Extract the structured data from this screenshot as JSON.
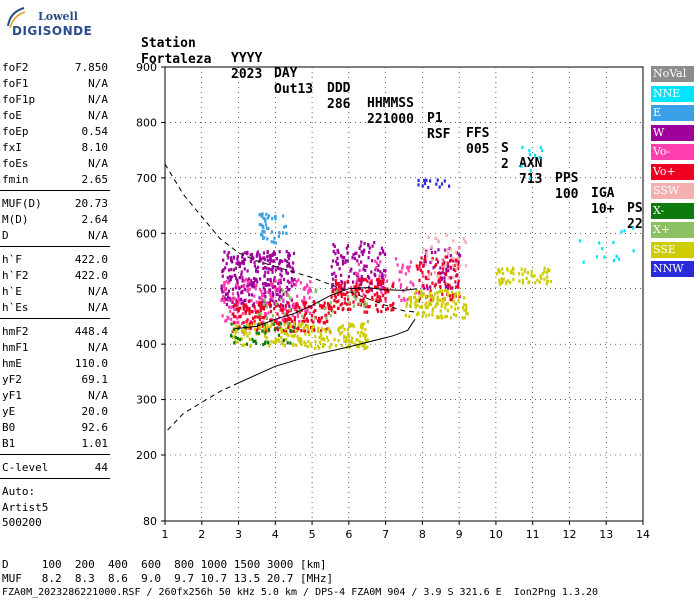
{
  "logo": {
    "top": "Lowell",
    "bottom": "DIGISONDE"
  },
  "header": {
    "labels": [
      "Station",
      "YYYY",
      "DAY",
      "DDD",
      "HHMMSS",
      "P1",
      "FFS",
      "S",
      "AXN",
      "PPS",
      "IGA",
      "PS"
    ],
    "values": [
      "Fortaleza",
      "2023",
      "Out13",
      "286",
      "221000",
      "RSF",
      "005",
      "2",
      "713",
      "100",
      "10+",
      "22"
    ]
  },
  "params": [
    {
      "label": "foF2",
      "value": "7.850"
    },
    {
      "label": "foF1",
      "value": "N/A"
    },
    {
      "label": "foF1p",
      "value": "N/A"
    },
    {
      "label": "foE",
      "value": "N/A"
    },
    {
      "label": "foEp",
      "value": "0.54"
    },
    {
      "label": "fxI",
      "value": "8.10"
    },
    {
      "label": "foEs",
      "value": "N/A"
    },
    {
      "label": "fmin",
      "value": "2.65"
    },
    {
      "label": "MUF(D)",
      "value": "20.73"
    },
    {
      "label": "M(D)",
      "value": "2.64"
    },
    {
      "label": "D",
      "value": "N/A"
    },
    {
      "label": "h`F",
      "value": "422.0"
    },
    {
      "label": "h`F2",
      "value": "422.0"
    },
    {
      "label": "h`E",
      "value": "N/A"
    },
    {
      "label": "h`Es",
      "value": "N/A"
    },
    {
      "label": "hmF2",
      "value": "448.4"
    },
    {
      "label": "hmF1",
      "value": "N/A"
    },
    {
      "label": "hmE",
      "value": "110.0"
    },
    {
      "label": "yF2",
      "value": "69.1"
    },
    {
      "label": "yF1",
      "value": "N/A"
    },
    {
      "label": "yE",
      "value": "20.0"
    },
    {
      "label": "B0",
      "value": "92.6"
    },
    {
      "label": "B1",
      "value": "1.01"
    },
    {
      "label": "C-level",
      "value": "44"
    }
  ],
  "auto": [
    "Auto:",
    "Artist5",
    "500200"
  ],
  "legend": [
    {
      "label": "NoVal",
      "color": "#8c8c8c"
    },
    {
      "label": "NNE",
      "color": "#00e5ff"
    },
    {
      "label": "E",
      "color": "#3aa0e8"
    },
    {
      "label": "W",
      "color": "#a0009a"
    },
    {
      "label": "Vo-",
      "color": "#ff3fb0"
    },
    {
      "label": "Vo+",
      "color": "#ee0022"
    },
    {
      "label": "SSW",
      "color": "#f4b0b0"
    },
    {
      "label": "X-",
      "color": "#0c7a0c"
    },
    {
      "label": "X+",
      "color": "#8cc060"
    },
    {
      "label": "SSE",
      "color": "#cccc00"
    },
    {
      "label": "NNW",
      "color": "#2a2ad8"
    }
  ],
  "axes": {
    "y_ticks": [
      "900",
      "800",
      "700",
      "600",
      "500",
      "400",
      "300",
      "200",
      "80"
    ],
    "x_ticks": [
      "1",
      "2",
      "3",
      "4",
      "5",
      "6",
      "7",
      "8",
      "9",
      "10",
      "11",
      "12",
      "13",
      "14"
    ]
  },
  "bottom": {
    "d_line": "D     100  200  400  600  800 1000 1500 3000 [km]",
    "muf_line": "MUF   8.2  8.3  8.6  9.0  9.7 10.7 13.5 20.7 [MHz]",
    "file_line": "FZA0M_2023286221000.RSF / 260fx256h 50 kHz 5.0 km / DPS-4 FZA0M 904 / 3.9 S 321.6 E  Ion2Png 1.3.20"
  },
  "chart_data": {
    "type": "scatter",
    "xlim": [
      1,
      14
    ],
    "ylim": [
      80,
      900
    ],
    "clusters": [
      {
        "name": "W",
        "x": [
          2.5,
          4.5
        ],
        "y": [
          470,
          570
        ],
        "n": 320
      },
      {
        "name": "W",
        "x": [
          5.5,
          7.0
        ],
        "y": [
          500,
          590
        ],
        "n": 120
      },
      {
        "name": "W",
        "x": [
          8.0,
          9.0
        ],
        "y": [
          500,
          580
        ],
        "n": 60
      },
      {
        "name": "Vo-",
        "x": [
          2.5,
          5.0
        ],
        "y": [
          440,
          520
        ],
        "n": 160
      },
      {
        "name": "Vo-",
        "x": [
          6.0,
          8.0
        ],
        "y": [
          480,
          560
        ],
        "n": 60
      },
      {
        "name": "Vo+",
        "x": [
          2.8,
          5.5
        ],
        "y": [
          425,
          480
        ],
        "n": 220
      },
      {
        "name": "Vo+",
        "x": [
          5.5,
          7.2
        ],
        "y": [
          460,
          520
        ],
        "n": 140
      },
      {
        "name": "Vo+",
        "x": [
          7.8,
          9.0
        ],
        "y": [
          480,
          560
        ],
        "n": 80
      },
      {
        "name": "SSE",
        "x": [
          2.8,
          6.5
        ],
        "y": [
          395,
          440
        ],
        "n": 220
      },
      {
        "name": "SSE",
        "x": [
          7.5,
          9.2
        ],
        "y": [
          450,
          500
        ],
        "n": 120
      },
      {
        "name": "SSE",
        "x": [
          10.0,
          11.5
        ],
        "y": [
          510,
          540
        ],
        "n": 60
      },
      {
        "name": "E",
        "x": [
          3.5,
          4.3
        ],
        "y": [
          585,
          640
        ],
        "n": 40
      },
      {
        "name": "NNE",
        "x": [
          10.5,
          11.5
        ],
        "y": [
          700,
          760
        ],
        "n": 10
      },
      {
        "name": "NNE",
        "x": [
          12.2,
          13.8
        ],
        "y": [
          540,
          620
        ],
        "n": 14
      },
      {
        "name": "NNW",
        "x": [
          7.8,
          8.7
        ],
        "y": [
          685,
          700
        ],
        "n": 14
      },
      {
        "name": "SSW",
        "x": [
          8.0,
          9.2
        ],
        "y": [
          520,
          600
        ],
        "n": 40
      },
      {
        "name": "X-",
        "x": [
          2.6,
          4.5
        ],
        "y": [
          400,
          440
        ],
        "n": 40
      },
      {
        "name": "X+",
        "x": [
          3.5,
          6.5
        ],
        "y": [
          440,
          500
        ],
        "n": 40
      }
    ],
    "profile": [
      [
        1.0,
        725
      ],
      [
        1.5,
        670
      ],
      [
        2.0,
        630
      ],
      [
        2.5,
        590
      ],
      [
        3.0,
        565
      ],
      [
        3.5,
        550
      ],
      [
        4.0,
        540
      ],
      [
        5.0,
        520
      ],
      [
        6.0,
        495
      ],
      [
        7.0,
        470
      ],
      [
        7.5,
        460
      ],
      [
        7.8,
        458
      ]
    ],
    "true_height": [
      [
        7.8,
        445
      ],
      [
        7.6,
        425
      ],
      [
        7.2,
        415
      ],
      [
        6.0,
        395
      ],
      [
        5.0,
        380
      ],
      [
        4.0,
        360
      ],
      [
        3.5,
        345
      ],
      [
        3.0,
        330
      ],
      [
        2.5,
        315
      ],
      [
        2.0,
        295
      ],
      [
        1.5,
        275
      ],
      [
        1.0,
        240
      ]
    ],
    "trace": [
      [
        2.9,
        428
      ],
      [
        3.5,
        432
      ],
      [
        4.0,
        445
      ],
      [
        4.5,
        455
      ],
      [
        5.0,
        470
      ],
      [
        5.5,
        488
      ],
      [
        6.0,
        500
      ],
      [
        6.5,
        502
      ],
      [
        7.0,
        498
      ],
      [
        7.5,
        497
      ],
      [
        7.85,
        500
      ]
    ]
  }
}
